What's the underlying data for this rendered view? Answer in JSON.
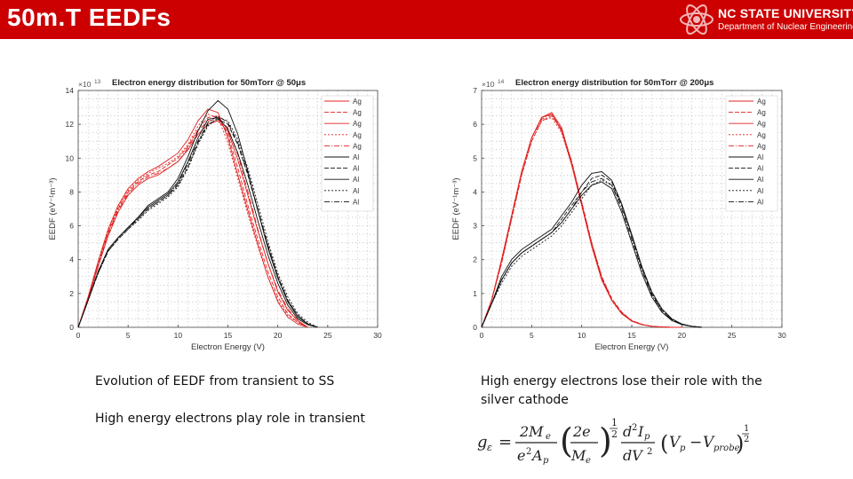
{
  "slide": {
    "title": "50m.T EEDFs",
    "header_color": "#cc0000"
  },
  "logo": {
    "name": "NC STATE UNIVERSITY",
    "department": "Department of Nuclear Engineering",
    "icon": "atom-icon"
  },
  "captions": {
    "left1": "Evolution of EEDF from transient to SS",
    "left2": "High energy electrons play role in transient",
    "right1": "High energy electrons lose their role with the silver cathode"
  },
  "formula": {
    "lhs": "g",
    "lhs_sub": "ε",
    "eq": "=",
    "m1_num": "2M",
    "m1_num_sub": "e",
    "m1_den": "e",
    "m1_den_sup": "2",
    "m1_den_A": "A",
    "m1_den_sub": "p",
    "m2_num": "2e",
    "m2_den": "M",
    "m2_den_sub": "e",
    "half": "1",
    "half_den": "2",
    "d_num": "d",
    "d_num_sup": "2",
    "d_num_I": "I",
    "d_num_sub": "p",
    "d_den": "dV",
    "d_den_sup": "2",
    "v": "V",
    "v_sub": "p",
    "minus": "−",
    "vprobe": "V",
    "vprobe_sub": "probe"
  },
  "colors": {
    "ag": "#e02020",
    "al": "#111111"
  },
  "chart_data": [
    {
      "type": "line",
      "title": "Electron energy distribution for 50mTorr @ 50μs",
      "xlabel": "Electron Energy (V)",
      "ylabel": "EEDF (eV⁻¹m⁻³)",
      "y_multiplier": "×10",
      "y_multiplier_exp": "13",
      "xlim": [
        0,
        30
      ],
      "ylim": [
        0,
        14
      ],
      "xticks": [
        0,
        5,
        10,
        15,
        20,
        25,
        30
      ],
      "yticks": [
        0,
        2,
        4,
        6,
        8,
        10,
        12,
        14
      ],
      "grid": true,
      "legend_location": "top-right",
      "legend": [
        "Ag",
        "Ag",
        "Ag",
        "Ag",
        "Ag",
        "Al",
        "Al",
        "Al",
        "Al",
        "Al"
      ],
      "series": [
        {
          "name": "Ag",
          "x": [
            0,
            1,
            2,
            3,
            4,
            5,
            6,
            7,
            8,
            9,
            10,
            11,
            12,
            13,
            14,
            15,
            16,
            17,
            18,
            19,
            20,
            21,
            22,
            23
          ],
          "values": [
            0,
            1.8,
            3.9,
            5.8,
            7.2,
            8.2,
            8.8,
            9.2,
            9.5,
            9.9,
            10.3,
            11.1,
            12.2,
            12.9,
            12.7,
            11.2,
            9.0,
            6.9,
            4.9,
            3.0,
            1.5,
            0.6,
            0.2,
            0
          ]
        },
        {
          "name": "Ag",
          "x": [
            0,
            1,
            2,
            3,
            4,
            5,
            6,
            7,
            8,
            9,
            10,
            11,
            12,
            13,
            14,
            15,
            16,
            17,
            18,
            19,
            20,
            21,
            22,
            23
          ],
          "values": [
            0,
            1.7,
            3.7,
            5.6,
            7.0,
            8.0,
            8.6,
            9.0,
            9.2,
            9.6,
            10.0,
            10.7,
            11.7,
            12.4,
            12.5,
            11.4,
            9.4,
            7.2,
            5.2,
            3.3,
            1.8,
            0.8,
            0.3,
            0
          ]
        },
        {
          "name": "Ag",
          "x": [
            0,
            1,
            2,
            3,
            4,
            5,
            6,
            7,
            8,
            9,
            10,
            11,
            12,
            13,
            14,
            15,
            16,
            17,
            18,
            19,
            20,
            21,
            22,
            23
          ],
          "values": [
            0,
            1.7,
            3.6,
            5.4,
            6.8,
            7.8,
            8.4,
            8.8,
            9.0,
            9.4,
            9.8,
            10.5,
            11.4,
            12.0,
            12.2,
            11.6,
            9.9,
            7.8,
            5.7,
            3.8,
            2.1,
            1.0,
            0.4,
            0
          ]
        },
        {
          "name": "Ag",
          "x": [
            0,
            1,
            2,
            3,
            4,
            5,
            6,
            7,
            8,
            9,
            10,
            11,
            12,
            13,
            14,
            15,
            16,
            17,
            18,
            19,
            20,
            21,
            22,
            23
          ],
          "values": [
            0,
            1.8,
            3.8,
            5.7,
            7.1,
            8.1,
            8.7,
            9.1,
            9.4,
            9.7,
            10.1,
            10.8,
            11.9,
            12.6,
            12.4,
            10.9,
            8.8,
            6.7,
            4.8,
            3.0,
            1.6,
            0.7,
            0.3,
            0
          ]
        },
        {
          "name": "Ag",
          "x": [
            0,
            1,
            2,
            3,
            4,
            5,
            6,
            7,
            8,
            9,
            10,
            11,
            12,
            13,
            14,
            15,
            16,
            17,
            18,
            19,
            20,
            21,
            22,
            23
          ],
          "values": [
            0,
            1.7,
            3.6,
            5.5,
            6.9,
            7.9,
            8.5,
            8.9,
            9.1,
            9.4,
            9.8,
            10.6,
            11.6,
            12.2,
            12.3,
            11.8,
            10.2,
            8.0,
            5.8,
            3.8,
            2.2,
            1.1,
            0.4,
            0
          ]
        },
        {
          "name": "Al",
          "x": [
            0,
            1,
            2,
            3,
            4,
            5,
            6,
            7,
            8,
            9,
            10,
            11,
            12,
            13,
            14,
            15,
            16,
            17,
            18,
            19,
            20,
            21,
            22,
            23,
            24
          ],
          "values": [
            0,
            1.6,
            3.3,
            4.6,
            5.3,
            5.9,
            6.5,
            7.1,
            7.5,
            7.9,
            8.6,
            9.8,
            11.2,
            12.3,
            12.4,
            11.7,
            10.3,
            8.4,
            6.3,
            4.3,
            2.6,
            1.3,
            0.5,
            0.15,
            0
          ]
        },
        {
          "name": "Al",
          "x": [
            0,
            1,
            2,
            3,
            4,
            5,
            6,
            7,
            8,
            9,
            10,
            11,
            12,
            13,
            14,
            15,
            16,
            17,
            18,
            19,
            20,
            21,
            22,
            23,
            24
          ],
          "values": [
            0,
            1.6,
            3.2,
            4.5,
            5.2,
            5.8,
            6.4,
            7.0,
            7.4,
            7.8,
            8.4,
            9.5,
            10.9,
            12.0,
            12.3,
            12.0,
            10.8,
            9.0,
            6.9,
            4.8,
            3.0,
            1.6,
            0.7,
            0.2,
            0
          ]
        },
        {
          "name": "Al",
          "x": [
            0,
            1,
            2,
            3,
            4,
            5,
            6,
            7,
            8,
            9,
            10,
            11,
            12,
            13,
            14,
            15,
            16,
            17,
            18,
            19,
            20,
            21,
            22,
            23,
            24
          ],
          "values": [
            0,
            1.6,
            3.3,
            4.6,
            5.3,
            5.9,
            6.5,
            7.2,
            7.6,
            8.0,
            8.8,
            10.1,
            11.6,
            12.8,
            13.4,
            12.9,
            11.4,
            9.2,
            6.9,
            4.7,
            2.9,
            1.5,
            0.6,
            0.2,
            0
          ]
        },
        {
          "name": "Al",
          "x": [
            0,
            1,
            2,
            3,
            4,
            5,
            6,
            7,
            8,
            9,
            10,
            11,
            12,
            13,
            14,
            15,
            16,
            17,
            18,
            19,
            20,
            21,
            22,
            23,
            24
          ],
          "values": [
            0,
            1.6,
            3.2,
            4.5,
            5.2,
            5.8,
            6.3,
            6.9,
            7.3,
            7.7,
            8.3,
            9.4,
            10.8,
            11.9,
            12.4,
            12.2,
            11.1,
            9.4,
            7.3,
            5.1,
            3.2,
            1.8,
            0.8,
            0.3,
            0
          ]
        },
        {
          "name": "Al",
          "x": [
            0,
            1,
            2,
            3,
            4,
            5,
            6,
            7,
            8,
            9,
            10,
            11,
            12,
            13,
            14,
            15,
            16,
            17,
            18,
            19,
            20,
            21,
            22,
            23,
            24
          ],
          "values": [
            0,
            1.6,
            3.3,
            4.6,
            5.3,
            5.9,
            6.4,
            7.0,
            7.4,
            7.8,
            8.5,
            9.7,
            11.0,
            12.1,
            12.5,
            12.1,
            10.9,
            9.1,
            7.0,
            4.9,
            3.0,
            1.6,
            0.7,
            0.2,
            0
          ]
        }
      ]
    },
    {
      "type": "line",
      "title": "Electron energy distribution for 50mTorr @ 200μs",
      "xlabel": "Electron Energy (V)",
      "ylabel": "EEDF (eV⁻¹m⁻³)",
      "y_multiplier": "×10",
      "y_multiplier_exp": "14",
      "xlim": [
        0,
        30
      ],
      "ylim": [
        0,
        7
      ],
      "xticks": [
        0,
        5,
        10,
        15,
        20,
        25,
        30
      ],
      "yticks": [
        0,
        1,
        2,
        3,
        4,
        5,
        6,
        7
      ],
      "grid": true,
      "legend_location": "top-right",
      "legend": [
        "Ag",
        "Ag",
        "Ag",
        "Ag",
        "Ag",
        "Al",
        "Al",
        "Al",
        "Al",
        "Al"
      ],
      "series": [
        {
          "name": "Ag",
          "x": [
            0,
            1,
            2,
            3,
            4,
            5,
            6,
            7,
            8,
            9,
            10,
            11,
            12,
            13,
            14,
            15,
            16,
            17,
            18,
            19,
            20
          ],
          "values": [
            0,
            0.8,
            2.0,
            3.3,
            4.6,
            5.6,
            6.2,
            6.3,
            5.8,
            4.8,
            3.6,
            2.4,
            1.4,
            0.8,
            0.4,
            0.18,
            0.08,
            0.03,
            0.01,
            0,
            0
          ]
        },
        {
          "name": "Ag",
          "x": [
            0,
            1,
            2,
            3,
            4,
            5,
            6,
            7,
            8,
            9,
            10,
            11,
            12,
            13,
            14,
            15,
            16,
            17,
            18,
            19,
            20
          ],
          "values": [
            0,
            0.8,
            1.9,
            3.2,
            4.5,
            5.5,
            6.1,
            6.25,
            5.85,
            4.9,
            3.7,
            2.5,
            1.5,
            0.85,
            0.45,
            0.2,
            0.09,
            0.03,
            0.01,
            0,
            0
          ]
        },
        {
          "name": "Ag",
          "x": [
            0,
            1,
            2,
            3,
            4,
            5,
            6,
            7,
            8,
            9,
            10,
            11,
            12,
            13,
            14,
            15,
            16,
            17,
            18,
            19,
            20
          ],
          "values": [
            0,
            0.8,
            2.0,
            3.3,
            4.6,
            5.6,
            6.2,
            6.35,
            5.9,
            4.85,
            3.65,
            2.45,
            1.45,
            0.8,
            0.42,
            0.19,
            0.08,
            0.03,
            0.01,
            0,
            0
          ]
        },
        {
          "name": "Ag",
          "x": [
            0,
            1,
            2,
            3,
            4,
            5,
            6,
            7,
            8,
            9,
            10,
            11,
            12,
            13,
            14,
            15,
            16,
            17,
            18,
            19,
            20
          ],
          "values": [
            0,
            0.8,
            1.9,
            3.2,
            4.5,
            5.5,
            6.1,
            6.2,
            5.75,
            4.8,
            3.6,
            2.4,
            1.4,
            0.78,
            0.4,
            0.18,
            0.08,
            0.03,
            0.01,
            0,
            0
          ]
        },
        {
          "name": "Ag",
          "x": [
            0,
            1,
            2,
            3,
            4,
            5,
            6,
            7,
            8,
            9,
            10,
            11,
            12,
            13,
            14,
            15,
            16,
            17,
            18,
            19,
            20
          ],
          "values": [
            0,
            0.8,
            1.9,
            3.3,
            4.6,
            5.6,
            6.15,
            6.3,
            5.85,
            4.9,
            3.7,
            2.5,
            1.5,
            0.82,
            0.43,
            0.2,
            0.09,
            0.03,
            0.01,
            0,
            0
          ]
        },
        {
          "name": "Al",
          "x": [
            0,
            1,
            2,
            3,
            4,
            5,
            6,
            7,
            8,
            9,
            10,
            11,
            12,
            13,
            14,
            15,
            16,
            17,
            18,
            19,
            20,
            21,
            22
          ],
          "values": [
            0,
            0.7,
            1.4,
            1.9,
            2.2,
            2.4,
            2.6,
            2.8,
            3.1,
            3.5,
            3.9,
            4.2,
            4.3,
            4.1,
            3.4,
            2.5,
            1.6,
            0.9,
            0.45,
            0.2,
            0.08,
            0.03,
            0
          ]
        },
        {
          "name": "Al",
          "x": [
            0,
            1,
            2,
            3,
            4,
            5,
            6,
            7,
            8,
            9,
            10,
            11,
            12,
            13,
            14,
            15,
            16,
            17,
            18,
            19,
            20,
            21,
            22
          ],
          "values": [
            0,
            0.7,
            1.4,
            1.9,
            2.2,
            2.4,
            2.6,
            2.8,
            3.2,
            3.6,
            4.0,
            4.4,
            4.5,
            4.3,
            3.6,
            2.7,
            1.75,
            1.0,
            0.5,
            0.22,
            0.09,
            0.03,
            0
          ]
        },
        {
          "name": "Al",
          "x": [
            0,
            1,
            2,
            3,
            4,
            5,
            6,
            7,
            8,
            9,
            10,
            11,
            12,
            13,
            14,
            15,
            16,
            17,
            18,
            19,
            20,
            21,
            22
          ],
          "values": [
            0,
            0.7,
            1.5,
            2.0,
            2.3,
            2.5,
            2.7,
            2.9,
            3.3,
            3.7,
            4.2,
            4.55,
            4.6,
            4.35,
            3.65,
            2.75,
            1.8,
            1.05,
            0.55,
            0.25,
            0.1,
            0.03,
            0
          ]
        },
        {
          "name": "Al",
          "x": [
            0,
            1,
            2,
            3,
            4,
            5,
            6,
            7,
            8,
            9,
            10,
            11,
            12,
            13,
            14,
            15,
            16,
            17,
            18,
            19,
            20,
            21,
            22
          ],
          "values": [
            0,
            0.7,
            1.3,
            1.8,
            2.1,
            2.3,
            2.5,
            2.7,
            3.0,
            3.4,
            3.8,
            4.2,
            4.35,
            4.2,
            3.6,
            2.7,
            1.8,
            1.05,
            0.55,
            0.25,
            0.1,
            0.03,
            0
          ]
        },
        {
          "name": "Al",
          "x": [
            0,
            1,
            2,
            3,
            4,
            5,
            6,
            7,
            8,
            9,
            10,
            11,
            12,
            13,
            14,
            15,
            16,
            17,
            18,
            19,
            20,
            21,
            22
          ],
          "values": [
            0,
            0.7,
            1.4,
            1.9,
            2.2,
            2.4,
            2.6,
            2.8,
            3.1,
            3.5,
            4.0,
            4.3,
            4.4,
            4.2,
            3.5,
            2.6,
            1.7,
            0.95,
            0.5,
            0.22,
            0.09,
            0.03,
            0
          ]
        }
      ]
    }
  ]
}
